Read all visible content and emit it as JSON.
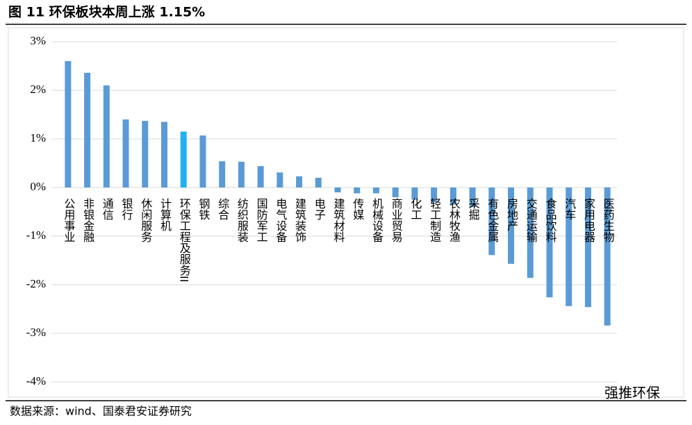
{
  "chart_data": {
    "type": "bar",
    "title": "图 11 环保板块本周上涨 1.15%",
    "categories": [
      "公用事业",
      "非银金融",
      "通信",
      "银行",
      "休闲服务",
      "计算机",
      "环保工程及服务II",
      "钢铁",
      "综合",
      "纺织服装",
      "国防军工",
      "电气设备",
      "建筑装饰",
      "电子",
      "建筑材料",
      "传媒",
      "机械设备",
      "商业贸易",
      "化工",
      "轻工制造",
      "农林牧渔",
      "采掘",
      "有色金属",
      "房地产",
      "交通运输",
      "食品饮料",
      "汽车",
      "家用电器",
      "医药生物"
    ],
    "values": [
      2.6,
      2.36,
      2.1,
      1.4,
      1.37,
      1.35,
      1.15,
      1.07,
      0.54,
      0.53,
      0.44,
      0.31,
      0.23,
      0.2,
      -0.1,
      -0.12,
      -0.12,
      -0.2,
      -0.25,
      -0.3,
      -0.35,
      -0.4,
      -1.39,
      -1.57,
      -1.86,
      -2.26,
      -2.44,
      -2.46,
      -2.84
    ],
    "colors": [
      "#5b9bd5",
      "#5b9bd5",
      "#5b9bd5",
      "#5b9bd5",
      "#5b9bd5",
      "#5b9bd5",
      "#22b0f0",
      "#5b9bd5",
      "#5b9bd5",
      "#5b9bd5",
      "#5b9bd5",
      "#5b9bd5",
      "#5b9bd5",
      "#5b9bd5",
      "#5b9bd5",
      "#5b9bd5",
      "#5b9bd5",
      "#5b9bd5",
      "#5b9bd5",
      "#5b9bd5",
      "#5b9bd5",
      "#5b9bd5",
      "#5b9bd5",
      "#5b9bd5",
      "#5b9bd5",
      "#5b9bd5",
      "#5b9bd5",
      "#5b9bd5",
      "#5b9bd5"
    ],
    "ylim": [
      -4,
      3
    ],
    "yticks": [
      {
        "value": -4,
        "label": "-4%"
      },
      {
        "value": -3,
        "label": "-3%"
      },
      {
        "value": -2,
        "label": "-2%"
      },
      {
        "value": -1,
        "label": "-1%"
      },
      {
        "value": 0,
        "label": "0%"
      },
      {
        "value": 1,
        "label": "1%"
      },
      {
        "value": 2,
        "label": "2%"
      },
      {
        "value": 3,
        "label": "3%"
      }
    ],
    "grid": true
  },
  "source": "数据来源：wind、国泰君安证券研究",
  "watermark": "强推环保"
}
